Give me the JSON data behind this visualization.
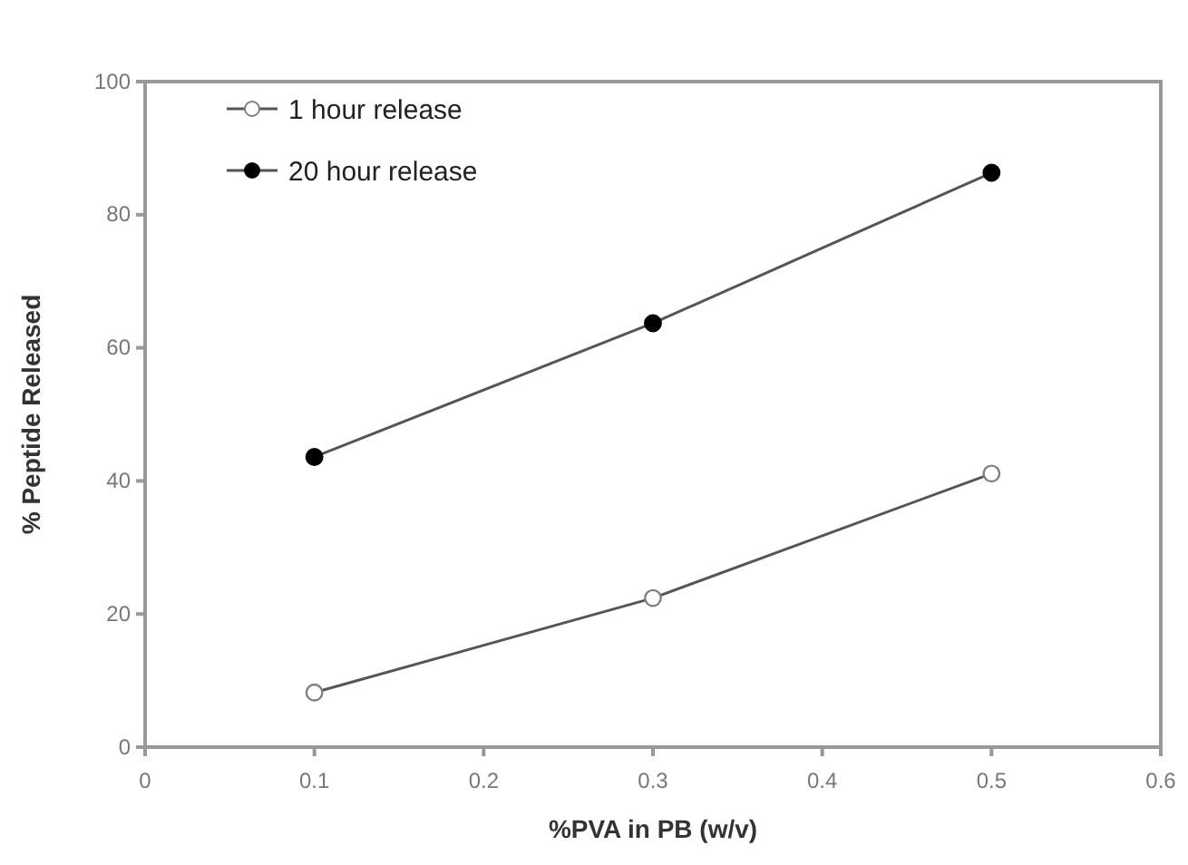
{
  "chart_data": {
    "type": "line",
    "xlabel": "%PVA in PB (w/v)",
    "ylabel": "% Peptide Released",
    "x": [
      0.1,
      0.3,
      0.5
    ],
    "series": [
      {
        "name": "1 hour release",
        "color": "#808080",
        "values": [
          8.2,
          22.4,
          41.1
        ],
        "marker": "circle"
      },
      {
        "name": "20 hour release",
        "color": "#000000",
        "values": [
          43.6,
          63.7,
          86.3
        ],
        "marker": "circle"
      }
    ],
    "xlim": [
      0,
      0.6
    ],
    "xticks": [
      0,
      0.1,
      0.2,
      0.3,
      0.4,
      0.5,
      0.6
    ],
    "ylim": [
      0,
      100
    ],
    "yticks": [
      0,
      20,
      40,
      60,
      80,
      100
    ],
    "grid": false,
    "legend": "top left",
    "line_style": "solid"
  }
}
